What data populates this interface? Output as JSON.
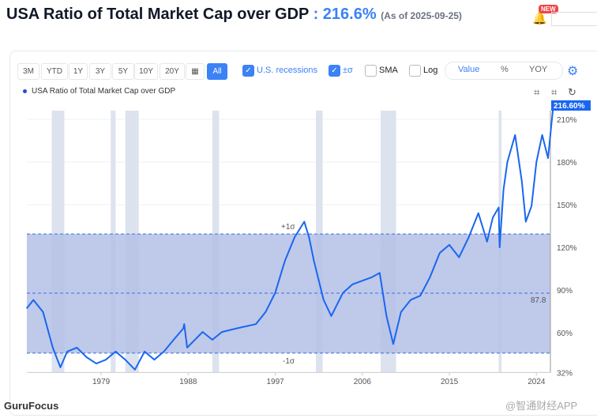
{
  "header": {
    "title": "USA Ratio of Total Market Cap over GDP",
    "value": ": 216.6%",
    "as_of": "(As of 2025-09-25)",
    "new_badge": "NEW"
  },
  "toolbar": {
    "ranges": [
      "3M",
      "YTD",
      "1Y",
      "3Y",
      "5Y",
      "10Y",
      "20Y",
      "All"
    ],
    "active": "All",
    "recessions": "U.S. recessions",
    "sigma": "±σ",
    "sma": "SMA",
    "log": "Log",
    "modes": [
      "Value",
      "%",
      "YOY"
    ],
    "active_mode": "Value"
  },
  "footer": {
    "brand": "GuruFocus",
    "watermark": "@智通财经APP"
  },
  "colors": {
    "line": "#1a66f0",
    "band": "#b4c0e6",
    "recession": "#dde3ee"
  },
  "chart_data": {
    "type": "line",
    "title": "USA Ratio of Total Market Cap over GDP",
    "legend": [
      "USA Ratio of Total Market Cap over GDP"
    ],
    "xlim": [
      1971.3,
      2025.9
    ],
    "ylim": [
      32,
      216.6
    ],
    "x_ticks": [
      1979,
      1988,
      1997,
      2006,
      2015,
      2024
    ],
    "y_ticks": [
      {
        "v": 32,
        "label": "32%"
      },
      {
        "v": 60,
        "label": "60%"
      },
      {
        "v": 90,
        "label": "90%"
      },
      {
        "v": 120,
        "label": "120%"
      },
      {
        "v": 150,
        "label": "150%"
      },
      {
        "v": 180,
        "label": "180%"
      },
      {
        "v": 210,
        "label": "210%"
      }
    ],
    "mean": 87.8,
    "mean_label": "87.8",
    "plus_sigma": 129.4,
    "plus_sigma_label": "+1σ",
    "minus_sigma": 45.6,
    "minus_sigma_label": "-1σ",
    "last_value_label": "216.60%",
    "recessions": [
      [
        1973.9,
        1975.2
      ],
      [
        1980,
        1980.5
      ],
      [
        1981.5,
        1982.9
      ],
      [
        1990.5,
        1991.2
      ],
      [
        2001.2,
        2001.9
      ],
      [
        2007.9,
        2009.5
      ],
      [
        2020.1,
        2020.4
      ]
    ],
    "series": [
      {
        "name": "USA Ratio of Total Market Cap over GDP",
        "x": [
          1971.3,
          1972,
          1973,
          1974,
          1974.8,
          1975.5,
          1976.5,
          1977.5,
          1978.5,
          1979.5,
          1980.5,
          1981.5,
          1982.5,
          1983.5,
          1984.5,
          1985.5,
          1986.5,
          1987.5,
          1987.6,
          1987.9,
          1989.5,
          1990.5,
          1991.5,
          1993,
          1995,
          1996,
          1997,
          1998,
          1999,
          2000,
          2000.5,
          2001,
          2002,
          2002.8,
          2004,
          2005,
          2007,
          2007.8,
          2008.5,
          2009.2,
          2010,
          2011,
          2012,
          2013,
          2014,
          2015,
          2016,
          2017,
          2018,
          2018.9,
          2019.5,
          2020.1,
          2020.2,
          2020.6,
          2021,
          2021.8,
          2022.5,
          2022.9,
          2023.5,
          2024,
          2024.6,
          2025.2,
          2025.7
        ],
        "values": [
          77,
          83,
          74.5,
          49.5,
          35.6,
          46.7,
          49.5,
          42.8,
          38.3,
          41,
          46.7,
          41,
          34,
          46.7,
          41,
          46.7,
          55,
          63,
          66,
          49.5,
          60.5,
          55,
          60.5,
          63,
          66,
          74.5,
          88,
          110.5,
          127,
          138,
          127,
          110.5,
          83,
          71.7,
          88,
          94,
          99,
          102,
          71.7,
          52,
          74.5,
          83,
          86,
          99,
          116,
          121.7,
          113,
          127,
          144,
          124,
          141,
          148,
          120,
          160.5,
          180,
          199,
          166,
          138,
          149,
          180,
          199,
          182.7,
          216.6
        ]
      }
    ]
  }
}
